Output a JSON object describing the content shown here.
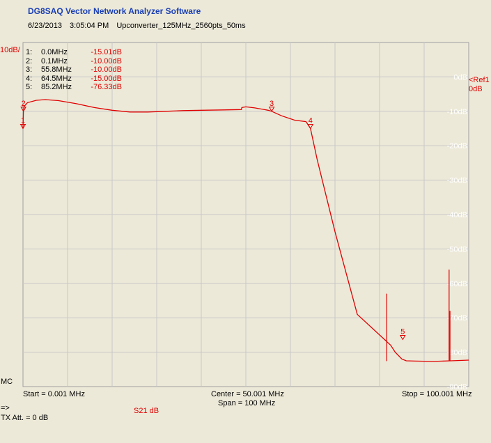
{
  "header": {
    "app_title": "DG8SAQ Vector Network Analyzer Software",
    "date": "6/23/2013",
    "time": "3:05:04 PM",
    "measurement_name": "Upconverter_125MHz_2560pts_50ms"
  },
  "scale_label": "10dB/",
  "ref_label_line1": "<Ref1",
  "ref_label_line2": "0dB",
  "mode_label": "MC",
  "footer": {
    "start": "Start = 0.001 MHz",
    "center": "Center = 50.001 MHz",
    "span": "Span = 100 MHz",
    "stop": "Stop = 100.001 MHz",
    "arrow": "=>",
    "trace_label": "S21  dB",
    "tx_att": "TX Att.  = 0 dB"
  },
  "markers": [
    {
      "index": "1:",
      "freq": "0.0MHz",
      "value": "-15.01dB",
      "x": 0.001,
      "y": -15.01,
      "label": "1"
    },
    {
      "index": "2:",
      "freq": "0.1MHz",
      "value": "-10.00dB",
      "x": 0.1,
      "y": -10.0,
      "label": "2"
    },
    {
      "index": "3:",
      "freq": "55.8MHz",
      "value": "-10.00dB",
      "x": 55.8,
      "y": -10.0,
      "label": "3"
    },
    {
      "index": "4:",
      "freq": "64.5MHz",
      "value": "-15.00dB",
      "x": 64.5,
      "y": -15.0,
      "label": "4"
    },
    {
      "index": "5:",
      "freq": "85.2MHz",
      "value": "-76.33dB",
      "x": 85.2,
      "y": -76.33,
      "label": "5"
    }
  ],
  "colors": {
    "trace": "#e00000",
    "grid": "#c8c8c8",
    "title": "#1a3fb5",
    "background": "#ece9d8"
  },
  "chart_data": {
    "type": "line",
    "xlim": [
      0.001,
      100.001
    ],
    "ylim": [
      -90,
      10
    ],
    "y_ticks": [
      0,
      -10,
      -20,
      -30,
      -40,
      -50,
      -60,
      -70,
      -80,
      -90
    ],
    "y_tick_labels": [
      "0dB",
      "-10dB",
      "-20dB",
      "-30dB",
      "-40dB",
      "-50dB",
      "-60dB",
      "-70dB",
      "-80dB",
      "-90dB"
    ],
    "grid": true,
    "series": [
      {
        "x": [
          0.001,
          0.1,
          0.3,
          1,
          3,
          5,
          8,
          12,
          16,
          20,
          24,
          28,
          32,
          36,
          40,
          45,
          49,
          49.1,
          50,
          52,
          55,
          55.8,
          58,
          61,
          63.5,
          64.5,
          66,
          70,
          75,
          80,
          82.5,
          83.5,
          85,
          86,
          88,
          92,
          96,
          100
        ],
        "y": [
          -15,
          -10,
          -8.5,
          -7.5,
          -6.8,
          -6.6,
          -6.9,
          -7.8,
          -8.9,
          -9.7,
          -10.2,
          -10.2,
          -10,
          -9.8,
          -9.7,
          -9.6,
          -9.5,
          -8.9,
          -8.7,
          -9.0,
          -9.7,
          -10,
          -11.3,
          -12.6,
          -13,
          -15,
          -24,
          -45,
          -69,
          -75,
          -78,
          -80,
          -82,
          -82.5,
          -82.6,
          -82.7,
          -82.5,
          -82.3
        ]
      }
    ],
    "spikes": [
      {
        "x": 81.6,
        "y": -63
      },
      {
        "x": 95.6,
        "y": -56
      },
      {
        "x": 95.8,
        "y": -68
      }
    ]
  }
}
